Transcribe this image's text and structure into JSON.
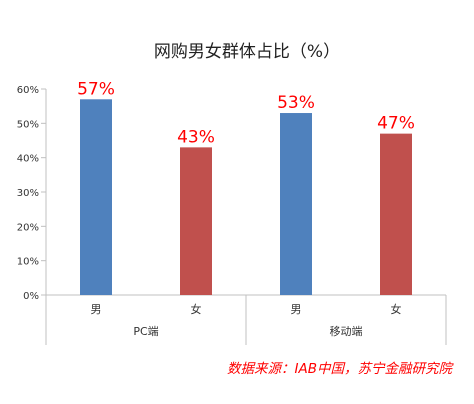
{
  "chart_data": {
    "type": "bar",
    "title": "网购男女群体占比（%）",
    "groups": [
      {
        "label": "PC端",
        "categories": [
          "男",
          "女"
        ]
      },
      {
        "label": "移动端",
        "categories": [
          "男",
          "女"
        ]
      }
    ],
    "categories": [
      "男",
      "女",
      "男",
      "女"
    ],
    "values": [
      57,
      43,
      53,
      47
    ],
    "data_labels": [
      "57%",
      "43%",
      "53%",
      "47%"
    ],
    "ylim": [
      0,
      60
    ],
    "yticks": [
      "0%",
      "10%",
      "20%",
      "30%",
      "40%",
      "50%",
      "60%"
    ],
    "xlabel": "",
    "ylabel": "",
    "grid": false,
    "source": "数据来源：IAB中国，苏宁金融研究院",
    "colors": {
      "male": "#4f81bd",
      "female": "#c0504d",
      "label": "#ff0000",
      "source": "#ff0000",
      "axis": "#c0c0c0",
      "text": "#333333"
    }
  }
}
